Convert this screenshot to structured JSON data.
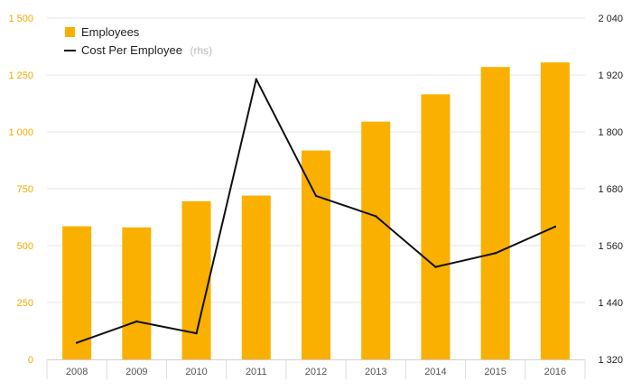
{
  "chart_data": {
    "type": "bar+line",
    "categories": [
      "2008",
      "2009",
      "2010",
      "2011",
      "2012",
      "2013",
      "2014",
      "2015",
      "2016"
    ],
    "series": [
      {
        "name": "Employees",
        "type": "bar",
        "axis": "left",
        "color": "#f9b000",
        "values": [
          585,
          580,
          695,
          720,
          918,
          1045,
          1165,
          1285,
          1305
        ]
      },
      {
        "name": "Cost Per Employee",
        "type": "line",
        "axis": "right",
        "color": "#111111",
        "values": [
          1355,
          1400,
          1375,
          1911,
          1665,
          1622,
          1515,
          1544,
          1600
        ]
      }
    ],
    "y_left": {
      "ylim": [
        0,
        1500
      ],
      "ticks": [
        0,
        250,
        500,
        750,
        1000,
        1250,
        1500
      ],
      "tick_labels": [
        "0",
        "250",
        "500",
        "750",
        "1 000",
        "1 250",
        "1 500"
      ],
      "color": "#f5a800"
    },
    "y_right": {
      "ylim": [
        1320,
        2040
      ],
      "ticks": [
        1320,
        1440,
        1560,
        1680,
        1800,
        1920,
        2040
      ],
      "tick_labels": [
        "1 320",
        "1 440",
        "1 560",
        "1 680",
        "1 800",
        "1 920",
        "2 040"
      ],
      "color": "#222222"
    },
    "legend": {
      "position": "top-left",
      "items": [
        {
          "label": "Employees",
          "suffix": "",
          "marker": "square"
        },
        {
          "label": "Cost Per Employee",
          "suffix": "(rhs)",
          "marker": "line"
        }
      ]
    },
    "grid": true
  }
}
